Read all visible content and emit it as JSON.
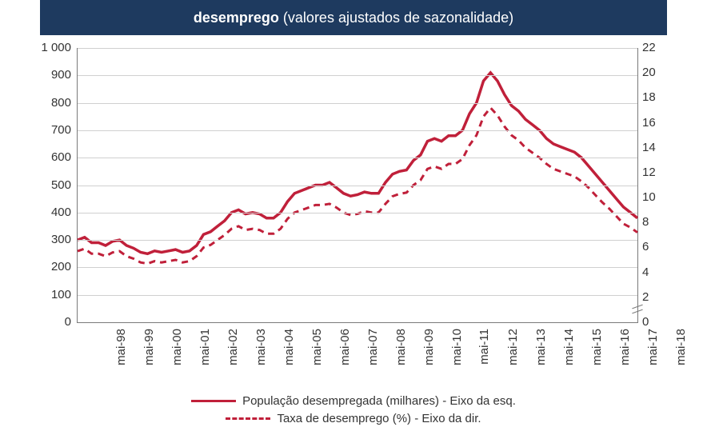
{
  "title_bold": "desemprego",
  "title_light": " (valores ajustados de sazonalidade)",
  "chart": {
    "type": "line-dual-axis",
    "background_color": "#ffffff",
    "grid_color": "#d0d0d0",
    "axis_color": "#7a7a7a",
    "title_bg": "#1e3a5f",
    "title_color": "#ffffff",
    "font_family": "Arial",
    "tick_fontsize": 15,
    "legend_fontsize": 15,
    "line_width_solid": 3.5,
    "line_width_dash": 3,
    "dash_pattern": "8 6",
    "series_color": "#c0203a",
    "left_axis": {
      "limits": [
        0,
        1000
      ],
      "ticks": [
        0,
        100,
        200,
        300,
        400,
        500,
        600,
        700,
        800,
        900,
        1000
      ],
      "tick_labels": [
        "0",
        "100",
        "200",
        "300",
        "400",
        "500",
        "600",
        "700",
        "800",
        "900",
        "1 000"
      ]
    },
    "right_axis": {
      "limits": [
        0,
        22
      ],
      "ticks": [
        0,
        2,
        4,
        6,
        8,
        10,
        12,
        14,
        16,
        18,
        20,
        22
      ],
      "tick_labels": [
        "0",
        "2",
        "4",
        "6",
        "8",
        "10",
        "12",
        "14",
        "16",
        "18",
        "20",
        "22"
      ],
      "axis_break_between": [
        0,
        2
      ]
    },
    "x_tick_labels": [
      "mai-98",
      "mai-99",
      "mai-00",
      "mai-01",
      "mai-02",
      "mai-03",
      "mai-04",
      "mai-05",
      "mai-06",
      "mai-07",
      "mai-08",
      "mai-09",
      "mai-10",
      "mai-11",
      "mai-12",
      "mai-13",
      "mai-14",
      "mai-15",
      "mai-16",
      "mai-17",
      "mai-18"
    ],
    "pop_desempregada": [
      300,
      310,
      290,
      290,
      280,
      295,
      300,
      280,
      270,
      255,
      250,
      260,
      255,
      260,
      265,
      255,
      260,
      280,
      320,
      330,
      350,
      370,
      400,
      410,
      395,
      400,
      395,
      380,
      380,
      400,
      440,
      470,
      480,
      490,
      500,
      500,
      510,
      490,
      470,
      460,
      465,
      475,
      470,
      470,
      510,
      540,
      550,
      555,
      590,
      610,
      660,
      670,
      660,
      680,
      680,
      700,
      760,
      800,
      880,
      910,
      880,
      830,
      790,
      770,
      740,
      720,
      700,
      670,
      650,
      640,
      630,
      620,
      600,
      570,
      540,
      510,
      480,
      450,
      420,
      400,
      380
    ],
    "taxa_desemprego": [
      5.7,
      5.9,
      5.5,
      5.5,
      5.3,
      5.6,
      5.7,
      5.3,
      5.1,
      4.8,
      4.7,
      4.9,
      4.8,
      4.9,
      5.0,
      4.8,
      4.9,
      5.3,
      6.0,
      6.2,
      6.6,
      7.0,
      7.5,
      7.7,
      7.4,
      7.5,
      7.4,
      7.1,
      7.1,
      7.5,
      8.3,
      8.8,
      9.0,
      9.2,
      9.4,
      9.4,
      9.5,
      9.2,
      8.8,
      8.6,
      8.7,
      8.9,
      8.8,
      8.8,
      9.5,
      10.1,
      10.3,
      10.4,
      11.0,
      11.4,
      12.3,
      12.5,
      12.3,
      12.7,
      12.7,
      13.1,
      14.2,
      15.0,
      16.5,
      17.2,
      16.6,
      15.7,
      15.0,
      14.6,
      14.0,
      13.6,
      13.2,
      12.7,
      12.3,
      12.1,
      11.9,
      11.7,
      11.3,
      10.8,
      10.2,
      9.6,
      9.1,
      8.5,
      7.9,
      7.6,
      7.2
    ],
    "legend": [
      {
        "style": "solid",
        "label": "População desempregada (milhares) - Eixo da esq."
      },
      {
        "style": "dash",
        "label": "Taxa de desemprego (%) - Eixo da dir."
      }
    ]
  }
}
